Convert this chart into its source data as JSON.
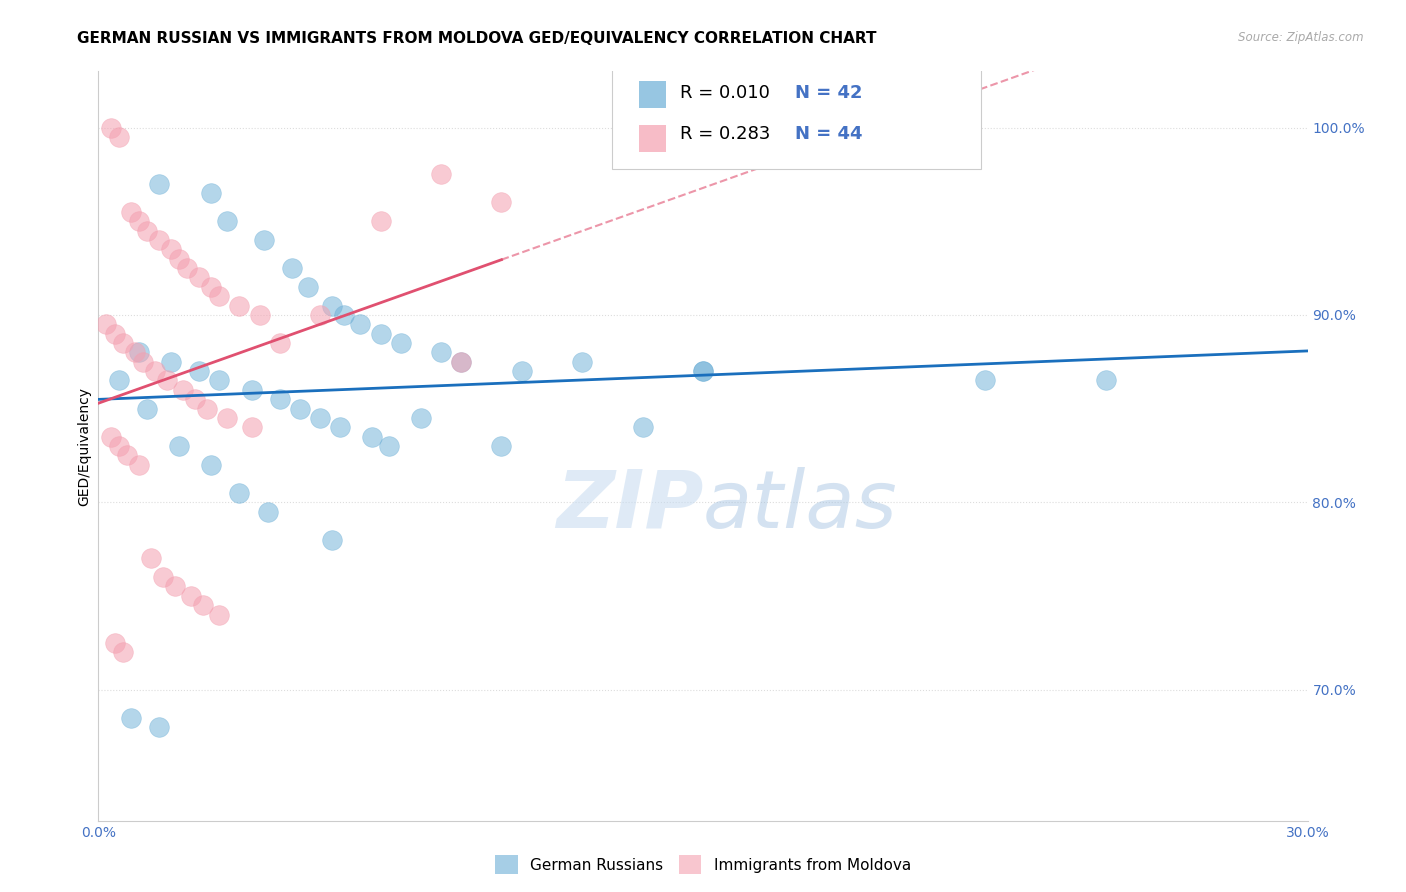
{
  "title": "GERMAN RUSSIAN VS IMMIGRANTS FROM MOLDOVA GED/EQUIVALENCY CORRELATION CHART",
  "source": "Source: ZipAtlas.com",
  "ylabel": "GED/Equivalency",
  "yticks": [
    100.0,
    90.0,
    80.0,
    70.0
  ],
  "ytick_labels": [
    "100.0%",
    "90.0%",
    "80.0%",
    "70.0%"
  ],
  "xmin": 0.0,
  "xmax": 30.0,
  "ymin": 63.0,
  "ymax": 103.0,
  "watermark_zip": "ZIP",
  "watermark_atlas": "atlas",
  "legend1_color": "#6baed6",
  "legend2_color": "#f4a0b0",
  "trendline1_color": "#1a6fbd",
  "trendline2_color": "#e05070",
  "blue_points_x": [
    1.5,
    2.8,
    3.2,
    4.1,
    4.8,
    5.2,
    5.8,
    6.1,
    6.5,
    7.0,
    7.5,
    1.0,
    1.8,
    2.5,
    3.0,
    3.8,
    4.5,
    5.0,
    5.5,
    6.0,
    6.8,
    7.2,
    8.5,
    9.0,
    10.5,
    12.0,
    13.5,
    15.0,
    0.5,
    1.2,
    2.0,
    2.8,
    3.5,
    4.2,
    5.8,
    8.0,
    10.0,
    15.0,
    22.0,
    0.8,
    1.5,
    25.0
  ],
  "blue_points_y": [
    97.0,
    96.5,
    95.0,
    94.0,
    92.5,
    91.5,
    90.5,
    90.0,
    89.5,
    89.0,
    88.5,
    88.0,
    87.5,
    87.0,
    86.5,
    86.0,
    85.5,
    85.0,
    84.5,
    84.0,
    83.5,
    83.0,
    88.0,
    87.5,
    87.0,
    87.5,
    84.0,
    87.0,
    86.5,
    85.0,
    83.0,
    82.0,
    80.5,
    79.5,
    78.0,
    84.5,
    83.0,
    87.0,
    86.5,
    68.5,
    68.0,
    86.5
  ],
  "pink_points_x": [
    0.3,
    0.5,
    0.8,
    1.0,
    1.2,
    1.5,
    1.8,
    2.0,
    2.2,
    2.5,
    2.8,
    3.0,
    3.5,
    4.0,
    0.2,
    0.4,
    0.6,
    0.9,
    1.1,
    1.4,
    1.7,
    2.1,
    2.4,
    2.7,
    3.2,
    3.8,
    4.5,
    9.0,
    0.3,
    0.5,
    0.7,
    1.0,
    1.3,
    1.6,
    1.9,
    2.3,
    2.6,
    3.0,
    0.4,
    0.6,
    5.5,
    7.0,
    8.5,
    10.0
  ],
  "pink_points_y": [
    100.0,
    99.5,
    95.5,
    95.0,
    94.5,
    94.0,
    93.5,
    93.0,
    92.5,
    92.0,
    91.5,
    91.0,
    90.5,
    90.0,
    89.5,
    89.0,
    88.5,
    88.0,
    87.5,
    87.0,
    86.5,
    86.0,
    85.5,
    85.0,
    84.5,
    84.0,
    88.5,
    87.5,
    83.5,
    83.0,
    82.5,
    82.0,
    77.0,
    76.0,
    75.5,
    75.0,
    74.5,
    74.0,
    72.5,
    72.0,
    90.0,
    95.0,
    97.5,
    96.0
  ],
  "background_color": "#ffffff",
  "grid_color": "#dddddd",
  "axis_color": "#4472c4",
  "title_fontsize": 11,
  "label_fontsize": 10
}
